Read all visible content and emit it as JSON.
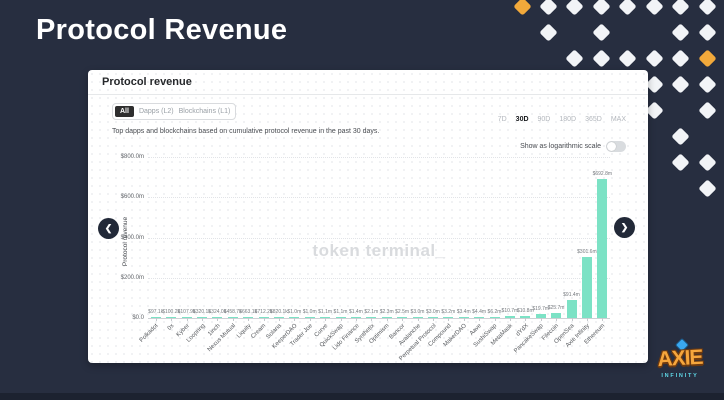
{
  "slide": {
    "title": "Protocol Revenue"
  },
  "card": {
    "header": "Protocol revenue",
    "filters": {
      "all": "All",
      "dapps": "Dapps (L2)",
      "blockchains": "Blockchains (L1)"
    },
    "description": "Top dapps and blockchains based on cumulative protocol revenue in the past 30 days.",
    "time_ranges": [
      "7D",
      "30D",
      "90D",
      "180D",
      "365D",
      "MAX"
    ],
    "active_range": "30D",
    "log_label": "Show as logarithmic scale",
    "log_toggle_on": false,
    "watermark": "token terminal_"
  },
  "chart_data": {
    "type": "bar",
    "title": "Protocol revenue",
    "xlabel": "",
    "ylabel": "Protocol revenue",
    "ylim_usd_millions": [
      0,
      800
    ],
    "ytick_labels": [
      "$0.0",
      "$200.0m",
      "$400.0m",
      "$600.0m",
      "$800.0m"
    ],
    "grid": true,
    "bar_color": "#7ce2c5",
    "categories": [
      "Polkadot",
      "0x",
      "Kyber",
      "Loopring",
      "1inch",
      "Nexus Mutual",
      "Liquity",
      "Cream",
      "Solana",
      "KeeperDAO",
      "Trader Joe",
      "Curve",
      "QuickSwap",
      "Lido Finance",
      "Synthetix",
      "Optimism",
      "Bancor",
      "Avalanche",
      "Perpetual Protocol",
      "Compound",
      "MakerDAO",
      "Aave",
      "SushiSwap",
      "MetaMask",
      "dYdX",
      "PancakeSwap",
      "Filecoin",
      "OpenSea",
      "Axie Infinity",
      "Ethereum"
    ],
    "values_usd_millions": [
      0.0971,
      0.1002,
      0.1079,
      0.3201,
      0.324,
      0.4587,
      0.6631,
      0.7122,
      0.8201,
      1.0,
      1.0,
      1.1,
      1.1,
      1.4,
      2.1,
      2.3,
      2.5,
      3.0,
      3.0,
      3.2,
      3.4,
      4.4,
      6.2,
      10.7,
      10.8,
      19.7,
      25.7,
      91.4,
      301.6,
      692.8
    ],
    "value_labels": [
      "$97.1k",
      "$100.2k",
      "$107.9k",
      "$320.1k",
      "$324.0k",
      "$458.7k",
      "$663.1k",
      "$712.2k",
      "$820.1k",
      "$1.0m",
      "$1.0m",
      "$1.1m",
      "$1.1m",
      "$1.4m",
      "$2.1m",
      "$2.3m",
      "$2.5m",
      "$3.0m",
      "$3.0m",
      "$3.2m",
      "$3.4m",
      "$4.4m",
      "$6.2m",
      "$10.7m",
      "$10.8m",
      "$19.7m",
      "$25.7m",
      "$91.4m",
      "$301.6m",
      "$692.8m"
    ]
  },
  "nav": {
    "prev": "❮",
    "next": "❯"
  },
  "decor": {
    "diamond_color": "#f2f4f7",
    "accent_color": "#f2a93b"
  },
  "logo": {
    "line1": "AXIE",
    "line2": "INFINITY"
  }
}
